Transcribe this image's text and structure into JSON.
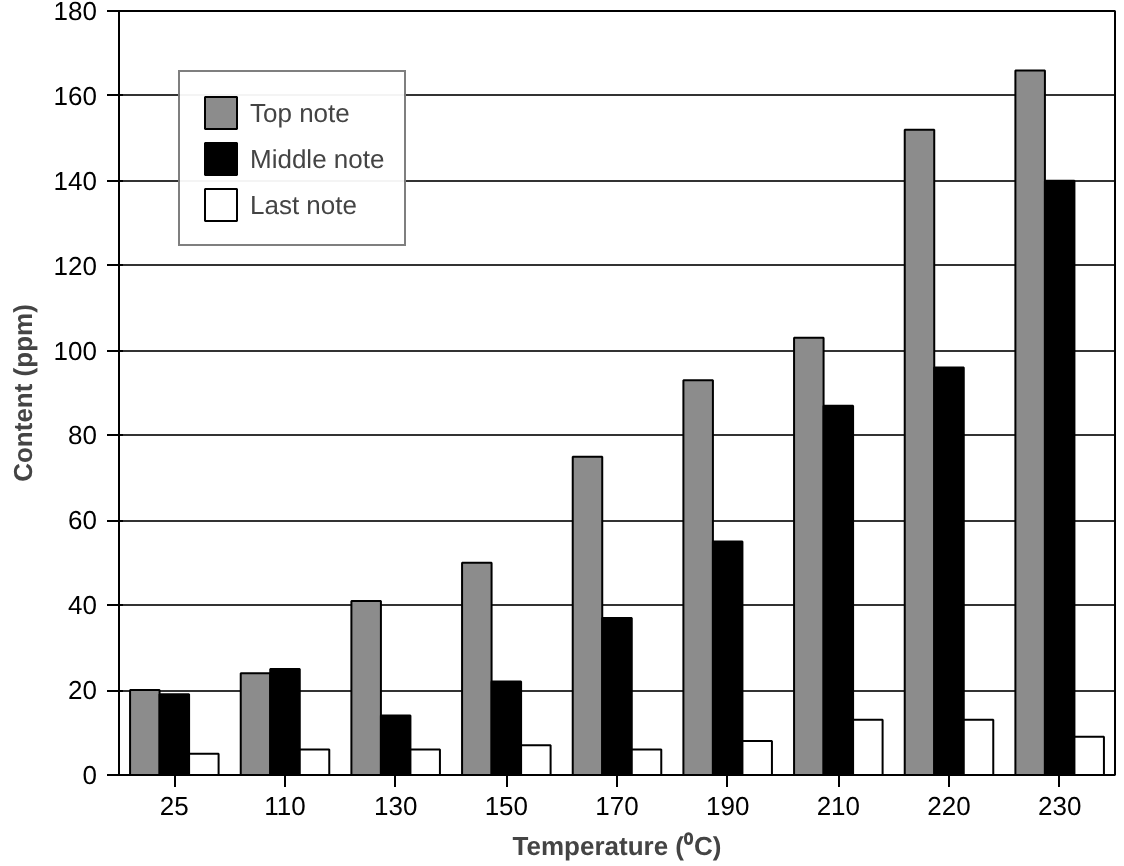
{
  "chart_data": {
    "type": "bar",
    "xlabel": "Temperature (⁰C)",
    "ylabel": "Content (ppm)",
    "categories": [
      "25",
      "110",
      "130",
      "150",
      "170",
      "190",
      "210",
      "220",
      "230"
    ],
    "series": [
      {
        "name": "Top note",
        "color": "#8c8c8c",
        "values": [
          20,
          24,
          41,
          50,
          75,
          93,
          103,
          152,
          166
        ]
      },
      {
        "name": "Middle note",
        "color": "#000000",
        "values": [
          19,
          25,
          14,
          22,
          37,
          55,
          87,
          96,
          140
        ]
      },
      {
        "name": "Last note",
        "color": "#ffffff",
        "values": [
          5,
          6,
          6,
          7,
          6,
          8,
          13,
          13,
          9
        ]
      }
    ],
    "ylim": [
      0,
      180
    ],
    "yticks": [
      0,
      20,
      40,
      60,
      80,
      100,
      120,
      140,
      160,
      180
    ],
    "grid": "y",
    "legend": "top left"
  }
}
